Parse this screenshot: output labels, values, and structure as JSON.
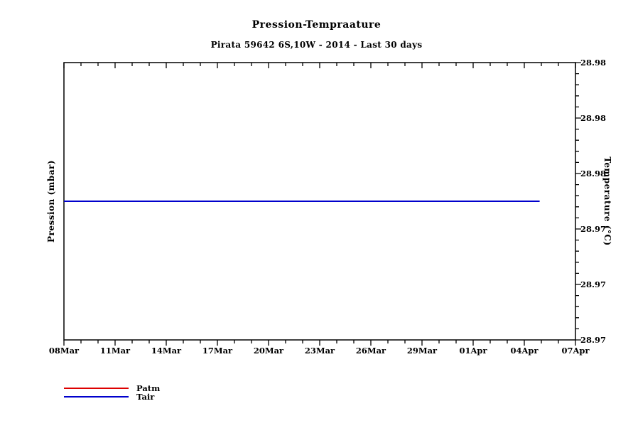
{
  "title": "Pression-Tempraature",
  "subtitle": "Pirata 59642 6S,10W - 2014 - Last 30 days",
  "axes": {
    "left_label": "Pression (mbar)",
    "right_label": "Temperature (°C)",
    "x_ticks": [
      "08Mar",
      "11Mar",
      "14Mar",
      "17Mar",
      "20Mar",
      "23Mar",
      "26Mar",
      "29Mar",
      "01Apr",
      "04Apr",
      "07Apr"
    ],
    "right_ticks": [
      "28.98",
      "28.98",
      "28.98",
      "28.97",
      "28.97",
      "28.97"
    ]
  },
  "legend": {
    "items": [
      {
        "label": "Patm",
        "color": "#dd0000"
      },
      {
        "label": "Tair",
        "color": "#0000cc"
      }
    ]
  },
  "colors": {
    "background": "#ffffff",
    "frame": "#000000",
    "patm_line": "#dd0000",
    "tair_line": "#0000cc"
  },
  "chart_data": {
    "type": "line",
    "title": "Pression-Tempraature",
    "subtitle": "Pirata 59642 6S,10W - 2014 - Last 30 days",
    "grid": false,
    "legend_position": "below-left",
    "x_axis": {
      "start": "08Mar",
      "end": "07Apr",
      "year": "2014",
      "days_total": 30,
      "minor_tick_every_days": 1,
      "major_tick_every_days": 3,
      "tick_labels": [
        "08Mar",
        "11Mar",
        "14Mar",
        "17Mar",
        "20Mar",
        "23Mar",
        "26Mar",
        "29Mar",
        "01Apr",
        "04Apr",
        "07Apr"
      ]
    },
    "left_y_axis": {
      "label": "Pression (mbar)",
      "tick_labels": []
    },
    "right_y_axis": {
      "label": "Temperature (°C)",
      "range": [
        28.97,
        28.98
      ],
      "tick_step": 0.002,
      "minor_ticks_per_interval": 5,
      "tick_labels": [
        "28.98",
        "28.98",
        "28.98",
        "28.97",
        "28.97",
        "28.97"
      ]
    },
    "series": [
      {
        "name": "Patm",
        "color": "#dd0000",
        "axis": "left",
        "visible": false,
        "values": []
      },
      {
        "name": "Tair",
        "color": "#0000cc",
        "axis": "right",
        "visible": true,
        "constant_value": 28.975,
        "x_day_start": 0,
        "x_day_end": 27.9
      }
    ]
  }
}
